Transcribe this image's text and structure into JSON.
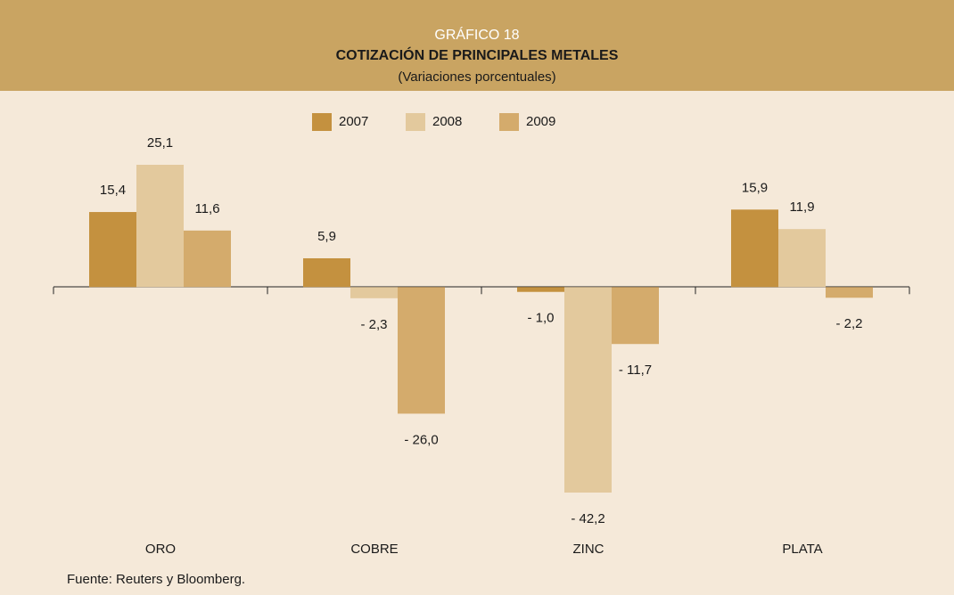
{
  "chart_data": {
    "type": "bar",
    "label": "GRÁFICO 18",
    "title": "COTIZACIÓN DE PRINCIPALES METALES",
    "subtitle": "(Variaciones porcentuales)",
    "source": "Fuente: Reuters y Bloomberg.",
    "categories": [
      "ORO",
      "COBRE",
      "ZINC",
      "PLATA"
    ],
    "series": [
      {
        "name": "2007",
        "color": "#c4913f",
        "values": [
          15.4,
          5.9,
          -1.0,
          15.9
        ],
        "value_labels": [
          "15,4",
          "5,9",
          "- 1,0",
          "15,9"
        ]
      },
      {
        "name": "2008",
        "color": "#e3c99d",
        "values": [
          25.1,
          -2.3,
          -42.2,
          11.9
        ],
        "value_labels": [
          "25,1",
          "- 2,3",
          "- 42,2",
          "11,9"
        ]
      },
      {
        "name": "2009",
        "color": "#d4ab6c",
        "values": [
          11.6,
          -26.0,
          -11.7,
          -2.2
        ],
        "value_labels": [
          "11,6",
          "- 26,0",
          "- 11,7",
          "- 2,2"
        ]
      }
    ],
    "legend": "top"
  }
}
